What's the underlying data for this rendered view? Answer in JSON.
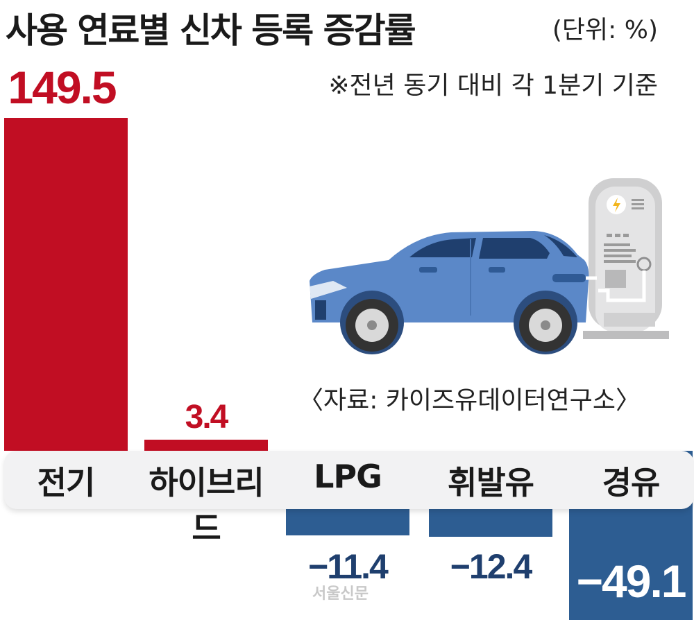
{
  "title": "사용 연료별 신차 등록 증감률",
  "unit_label": "(단위: %)",
  "note": "※전년 동기 대비 각 1분기 기준",
  "source": "〈자료: 카이즈유데이터연구소〉",
  "watermark": "서울신문",
  "colors": {
    "positive": "#c10e23",
    "negative": "#2d5d92",
    "car_body": "#5b88c8",
    "baseline_band": "#f2f2f3"
  },
  "chart_data": {
    "type": "bar",
    "title": "사용 연료별 신차 등록 증감률",
    "ylabel": "",
    "unit": "%",
    "categories": [
      "전기",
      "하이브리드",
      "LPG",
      "휘발유",
      "경유"
    ],
    "values": [
      149.5,
      3.4,
      -11.4,
      -12.4,
      -49.1
    ],
    "value_labels": [
      "149.5",
      "3.4",
      "−11.4",
      "−12.4",
      "−49.1"
    ],
    "legend": "none",
    "grid": false
  }
}
